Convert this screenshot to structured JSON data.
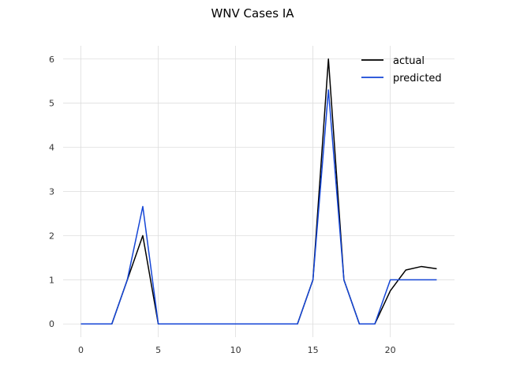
{
  "chart_data": {
    "type": "line",
    "title": "WNV Cases IA",
    "xlabel": "",
    "ylabel": "",
    "xlim": [
      -1.15,
      24.15
    ],
    "ylim": [
      -0.3,
      6.3
    ],
    "xticks": [
      0,
      5,
      10,
      15,
      20
    ],
    "yticks": [
      0,
      1,
      2,
      3,
      4,
      5,
      6
    ],
    "grid": true,
    "legend_position": "top-right",
    "x": [
      0,
      1,
      2,
      3,
      4,
      5,
      6,
      7,
      8,
      9,
      10,
      11,
      12,
      13,
      14,
      15,
      16,
      17,
      18,
      19,
      20,
      21,
      22,
      23
    ],
    "series": [
      {
        "name": "actual",
        "color": "#000000",
        "values": [
          0,
          0,
          0,
          1,
          2,
          0,
          0,
          0,
          0,
          0,
          0,
          0,
          0,
          0,
          0,
          1,
          6,
          1,
          0,
          0,
          0.75,
          1.22,
          1.3,
          1.25
        ]
      },
      {
        "name": "predicted",
        "color": "#1546d6",
        "values": [
          0,
          0,
          0,
          1,
          2.66,
          0,
          0,
          0,
          0,
          0,
          0,
          0,
          0,
          0,
          0,
          1,
          5.3,
          1,
          0,
          0,
          1,
          1,
          1,
          1
        ]
      }
    ]
  }
}
